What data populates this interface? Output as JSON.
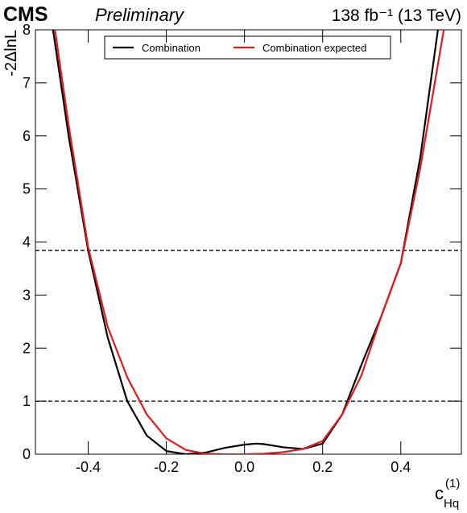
{
  "chart_data": {
    "type": "line",
    "title": "CMS",
    "subtitle": "Preliminary",
    "lumi": "138 fb⁻¹ (13 TeV)",
    "y_label": "-2ΔlnL",
    "x_label": {
      "base": "c",
      "sub": "Hq",
      "sup": "(1)"
    },
    "xlim": [
      -0.535,
      0.555
    ],
    "ylim": [
      0,
      8
    ],
    "xticks": [
      -0.4,
      -0.2,
      {
        "value": 0,
        "label": "0.0"
      },
      0.2,
      0.4
    ],
    "yticks": [
      0,
      1,
      2,
      3,
      4,
      5,
      6,
      7,
      8
    ],
    "hlines": [
      1,
      3.84
    ],
    "series": [
      {
        "name": "Combination",
        "color": "#000000",
        "x": [
          -0.49,
          -0.45,
          -0.4,
          -0.35,
          -0.3,
          -0.25,
          -0.2,
          -0.15,
          -0.1,
          -0.05,
          0,
          0.03,
          0.05,
          0.1,
          0.15,
          0.2,
          0.25,
          0.3,
          0.35,
          0.4,
          0.45,
          0.495
        ],
        "values": [
          8,
          6,
          3.84,
          2.2,
          1,
          0.35,
          0.06,
          0,
          0.03,
          0.12,
          0.18,
          0.2,
          0.19,
          0.13,
          0.1,
          0.2,
          0.75,
          1.7,
          2.6,
          3.6,
          5.6,
          8
        ]
      },
      {
        "name": "Combination expected",
        "color": "#e8191c",
        "x": [
          -0.485,
          -0.45,
          -0.4,
          -0.35,
          -0.3,
          -0.25,
          -0.2,
          -0.15,
          -0.1,
          -0.05,
          0,
          0.05,
          0.1,
          0.15,
          0.2,
          0.25,
          0.3,
          0.35,
          0.4,
          0.45,
          0.51
        ],
        "values": [
          8,
          6.2,
          3.9,
          2.4,
          1.45,
          0.75,
          0.3,
          0.08,
          0.01,
          0,
          0,
          0.01,
          0.04,
          0.1,
          0.25,
          0.75,
          1.5,
          2.6,
          3.6,
          5.4,
          8
        ]
      }
    ]
  }
}
